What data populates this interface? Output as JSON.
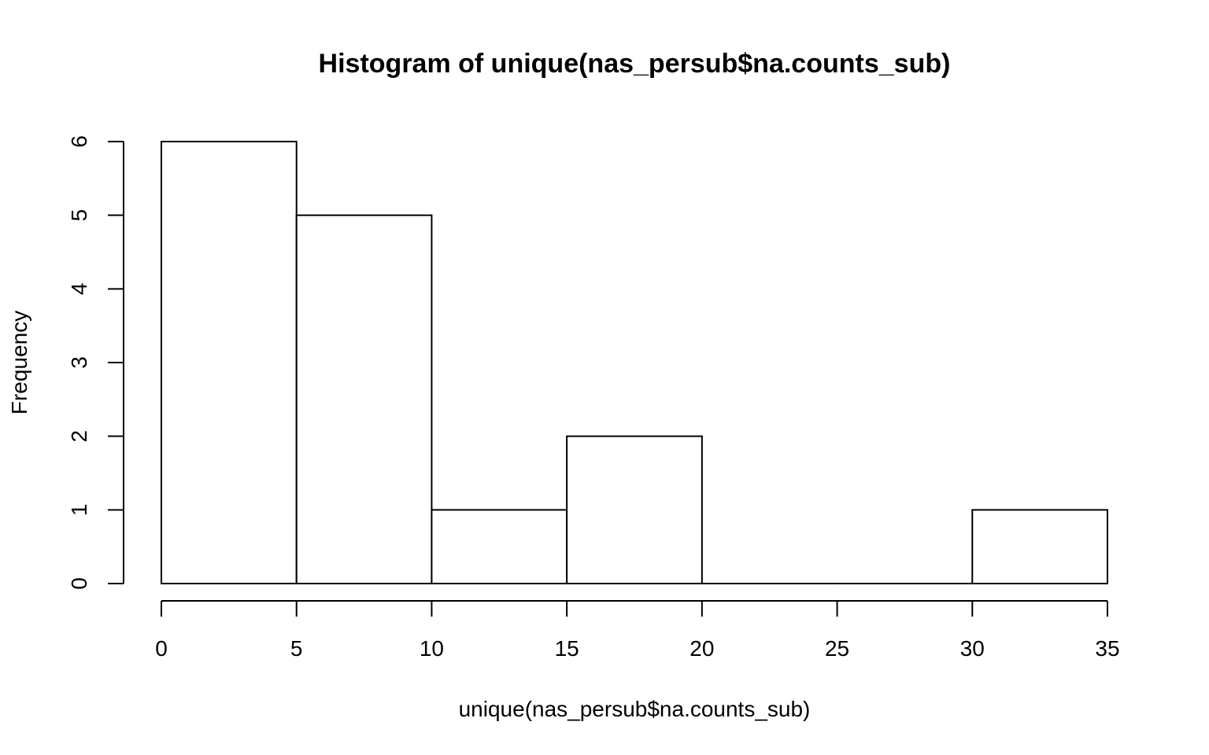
{
  "chart_data": {
    "type": "bar",
    "title": "Histogram of unique(nas_persub$na.counts_sub)",
    "xlabel": "unique(nas_persub$na.counts_sub)",
    "ylabel": "Frequency",
    "bins": [
      {
        "from": 0,
        "to": 5,
        "count": 6
      },
      {
        "from": 5,
        "to": 10,
        "count": 5
      },
      {
        "from": 10,
        "to": 15,
        "count": 1
      },
      {
        "from": 15,
        "to": 20,
        "count": 2
      },
      {
        "from": 20,
        "to": 25,
        "count": 0
      },
      {
        "from": 25,
        "to": 30,
        "count": 0
      },
      {
        "from": 30,
        "to": 35,
        "count": 1
      }
    ],
    "xlim": [
      0,
      35
    ],
    "ylim": [
      0,
      6
    ],
    "xticks": [
      0,
      5,
      10,
      15,
      20,
      25,
      30,
      35
    ],
    "yticks": [
      0,
      1,
      2,
      3,
      4,
      5,
      6
    ],
    "grid": false,
    "bar_fill": "#ffffff",
    "bar_stroke": "#000000"
  }
}
